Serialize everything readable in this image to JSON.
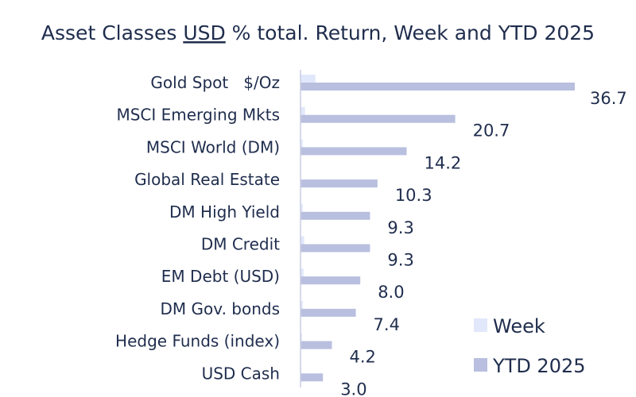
{
  "chart_data": {
    "type": "bar",
    "orientation": "horizontal",
    "title": {
      "prefix": "Asset Classes ",
      "underlined": "USD",
      "suffix": " % total. Return, Week and YTD 2025"
    },
    "categories": [
      "Gold Spot   $/Oz",
      "MSCI Emerging Mkts",
      "MSCI World (DM)",
      "Global Real Estate",
      "DM High Yield",
      "DM Credit",
      "EM Debt (USD)",
      "DM Gov. bonds",
      "Hedge Funds (index)",
      "USD Cash"
    ],
    "series": [
      {
        "name": "Week",
        "color": "#e2e8fb",
        "values": [
          2.0,
          0.6,
          0.3,
          0.0,
          0.3,
          0.5,
          0.4,
          0.3,
          0.2,
          0.1
        ]
      },
      {
        "name": "YTD 2025",
        "color": "#b9bfdf",
        "values": [
          36.7,
          20.7,
          14.2,
          10.3,
          9.3,
          9.3,
          8.0,
          7.4,
          4.2,
          3.0
        ]
      }
    ],
    "data_labels": [
      "36.7",
      "20.7",
      "14.2",
      "10.3",
      "9.3",
      "9.3",
      "8.0",
      "7.4",
      "4.2",
      "3.0"
    ],
    "xlim": [
      0,
      40
    ],
    "grid": false,
    "legend_position": "bottom-right"
  }
}
